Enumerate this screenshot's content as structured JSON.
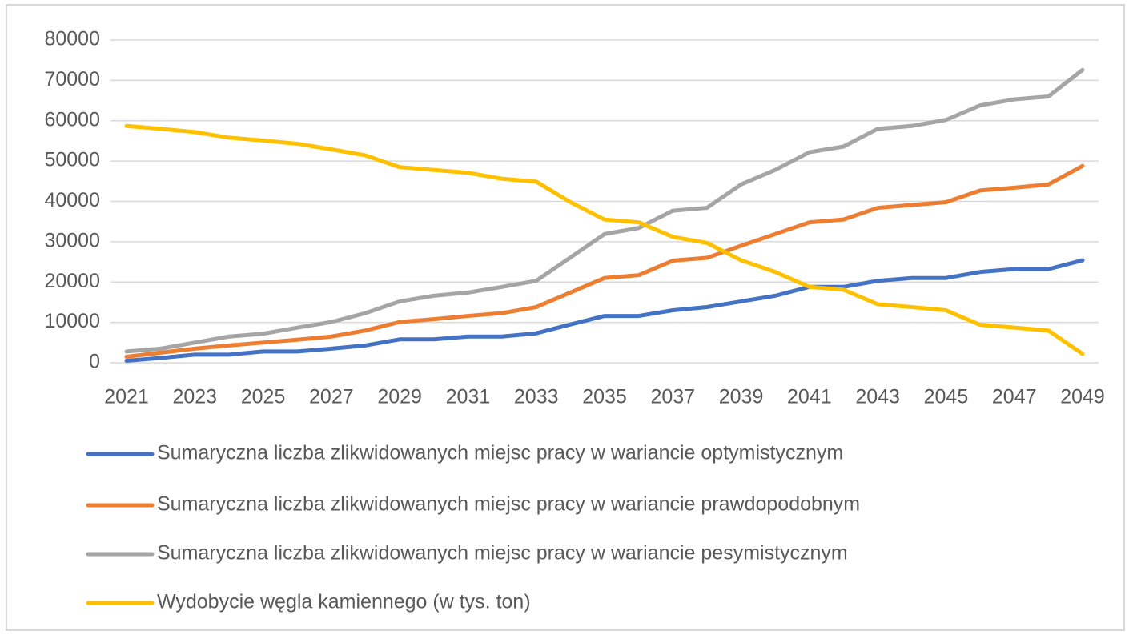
{
  "chart_data": {
    "type": "line",
    "categories": [
      "2021",
      null,
      "2023",
      null,
      "2025",
      null,
      "2027",
      null,
      "2029",
      null,
      "2031",
      null,
      "2033",
      null,
      "2035",
      null,
      "2037",
      null,
      "2039",
      null,
      "2041",
      null,
      "2043",
      null,
      "2045",
      null,
      "2047",
      null,
      "2049"
    ],
    "series": [
      {
        "name": "Sumaryczna liczba zlikwidowanych miejsc pracy w wariancie optymistycznym",
        "color": "#4472c4",
        "values": [
          500,
          1200,
          2000,
          2000,
          2800,
          2800,
          3500,
          4300,
          5800,
          5800,
          6500,
          6500,
          7300,
          9500,
          11600,
          11600,
          13000,
          13800,
          15200,
          16600,
          18800,
          18800,
          20300,
          21000,
          21000,
          22500,
          23200,
          23200,
          25400
        ]
      },
      {
        "name": "Sumaryczna liczba zlikwidowanych miejsc pracy w wariancie prawdopodobnym",
        "color": "#ed7d31",
        "values": [
          1500,
          2500,
          3500,
          4300,
          5000,
          5700,
          6500,
          8000,
          10100,
          10800,
          11600,
          12300,
          13800,
          17400,
          21000,
          21700,
          25300,
          26000,
          29000,
          31900,
          34800,
          35500,
          38400,
          39100,
          39800,
          42700,
          43400,
          44200,
          48800
        ]
      },
      {
        "name": "Sumaryczna liczba zlikwidowanych miejsc pracy w wariancie pesymistycznym",
        "color": "#a5a5a5",
        "values": [
          2800,
          3500,
          5000,
          6500,
          7200,
          8700,
          10100,
          12300,
          15200,
          16600,
          17400,
          18800,
          20300,
          26100,
          31900,
          33400,
          37700,
          38400,
          44200,
          47800,
          52200,
          53600,
          58000,
          58700,
          60200,
          63800,
          65300,
          66000,
          72600
        ]
      },
      {
        "name": "Wydobycie węgla kamiennego (w tys. ton)",
        "color": "#ffc000",
        "values": [
          58700,
          58000,
          57200,
          55800,
          55100,
          54300,
          52900,
          51400,
          48500,
          47800,
          47100,
          45600,
          44900,
          39800,
          35500,
          34800,
          31200,
          29700,
          25400,
          22500,
          18800,
          18100,
          14500,
          13800,
          13000,
          9400,
          8700,
          8000,
          2200
        ]
      }
    ],
    "ylim": [
      0,
      80000
    ],
    "yticks": [
      0,
      10000,
      20000,
      30000,
      40000,
      50000,
      60000,
      70000,
      80000
    ],
    "grid": true,
    "legend": "bottom"
  }
}
